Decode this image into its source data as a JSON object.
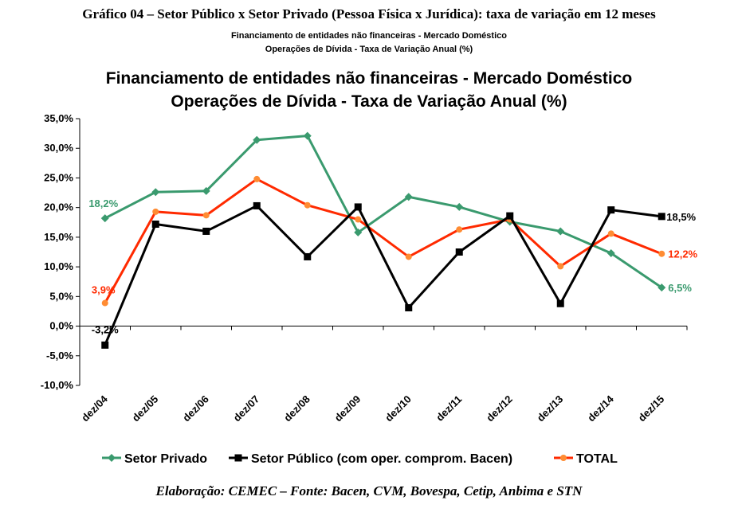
{
  "figure": {
    "title": "Gráfico 04 – Setor Público x Setor Privado (Pessoa Física x Jurídica): taxa de variação em 12 meses",
    "subtitle_line1": "Financiamento de entidades não financeiras - Mercado Doméstico",
    "subtitle_line2": "Operações de Dívida - Taxa de Variação Anual (%)",
    "footer": "Elaboração: CEMEC – Fonte: Bacen, CVM, Bovespa, Cetip, Anbima e STN"
  },
  "chart_data": {
    "type": "line",
    "title_line1": "Financiamento de entidades não financeiras - Mercado Doméstico",
    "title_line2": "Operações de Dívida - Taxa de Variação Anual (%)",
    "categories": [
      "dez/04",
      "dez/05",
      "dez/06",
      "dez/07",
      "dez/08",
      "dez/09",
      "dez/10",
      "dez/11",
      "dez/12",
      "dez/13",
      "dez/14",
      "dez/15"
    ],
    "ylim": [
      -10,
      35
    ],
    "yticks": [
      35,
      30,
      25,
      20,
      15,
      10,
      5,
      0,
      -5,
      -10
    ],
    "ytick_labels": [
      "35,0%",
      "30,0%",
      "25,0%",
      "20,0%",
      "15,0%",
      "10,0%",
      "5,0%",
      "0,0%",
      "-5,0%",
      "-10,0%"
    ],
    "grid": false,
    "legend_position": "bottom",
    "series": [
      {
        "name": "Setor Privado",
        "color": "#3a9a6e",
        "marker": "diamond",
        "values": [
          18.2,
          22.6,
          22.8,
          31.4,
          32.1,
          15.8,
          21.8,
          20.1,
          17.6,
          16.0,
          12.3,
          6.5
        ],
        "labels": [
          {
            "index": 0,
            "text": "18,2%"
          },
          {
            "index": 11,
            "text": "6,5%"
          }
        ]
      },
      {
        "name": "Setor Público (com oper. comprom. Bacen)",
        "color": "#000000",
        "marker": "square",
        "values": [
          -3.2,
          17.2,
          16.0,
          20.3,
          11.7,
          20.1,
          3.1,
          12.5,
          18.6,
          3.8,
          19.6,
          18.5
        ],
        "labels": [
          {
            "index": 0,
            "text": "-3,2%"
          },
          {
            "index": 11,
            "text": "18,5%"
          }
        ]
      },
      {
        "name": "TOTAL",
        "color": "#ff2a00",
        "marker": "circle",
        "marker_color": "#ff8c33",
        "values": [
          3.9,
          19.3,
          18.7,
          24.8,
          20.4,
          18.0,
          11.7,
          16.3,
          18.0,
          10.1,
          15.6,
          12.2
        ],
        "labels": [
          {
            "index": 0,
            "text": "3,9%"
          },
          {
            "index": 11,
            "text": "12,2%"
          }
        ]
      }
    ]
  }
}
